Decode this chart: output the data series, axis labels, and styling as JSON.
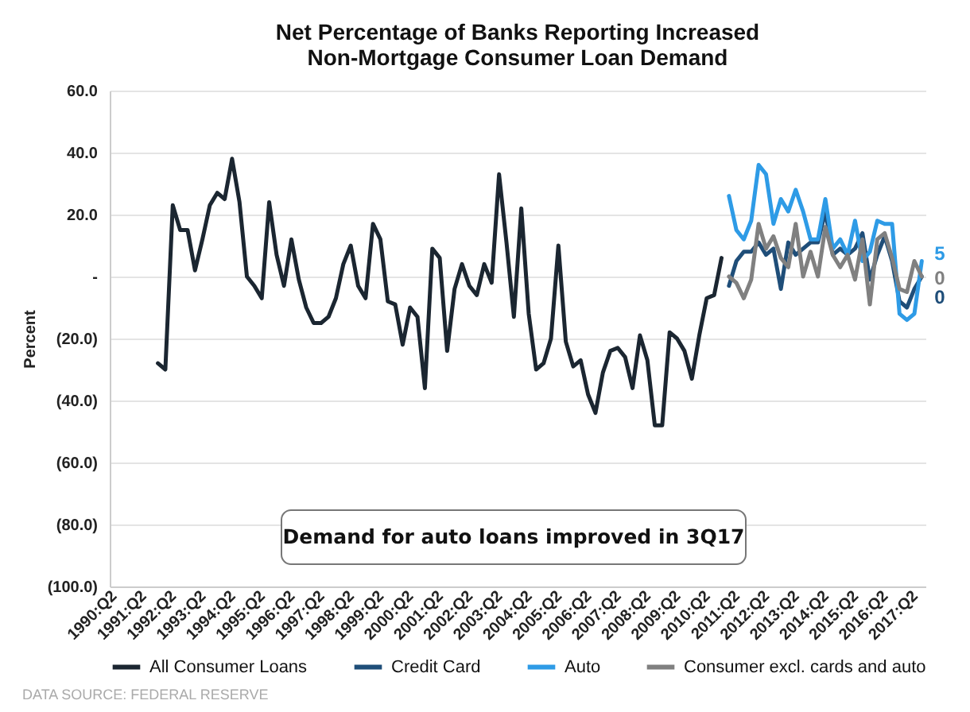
{
  "chart_data": {
    "type": "line",
    "title": "Net Percentage of Banks Reporting Increased\nNon-Mortgage Consumer Loan Demand",
    "ylabel": "Percent",
    "annotations": [
      "Demand for auto loans improved in 3Q17",
      "DATA SOURCE: FEDERAL RESERVE"
    ],
    "categories": [
      "1990:Q2",
      null,
      null,
      null,
      "1991:Q2",
      null,
      null,
      null,
      "1992:Q2",
      null,
      null,
      null,
      "1993:Q2",
      null,
      null,
      null,
      "1994:Q2",
      null,
      null,
      null,
      "1995:Q2",
      null,
      null,
      null,
      "1996:Q2",
      null,
      null,
      null,
      "1997:Q2",
      null,
      null,
      null,
      "1998:Q2",
      null,
      null,
      null,
      "1999:Q2",
      null,
      null,
      null,
      "2000:Q2",
      null,
      null,
      null,
      "2001:Q2",
      null,
      null,
      null,
      "2002:Q2",
      null,
      null,
      null,
      "2003:Q2",
      null,
      null,
      null,
      "2004:Q2",
      null,
      null,
      null,
      "2005:Q2",
      null,
      null,
      null,
      "2006:Q2",
      null,
      null,
      null,
      "2007:Q2",
      null,
      null,
      null,
      "2008:Q2",
      null,
      null,
      null,
      "2009:Q2",
      null,
      null,
      null,
      "2010:Q2",
      null,
      null,
      null,
      "2011:Q2",
      null,
      null,
      null,
      "2012:Q2",
      null,
      null,
      null,
      "2013:Q2",
      null,
      null,
      null,
      "2014:Q2",
      null,
      null,
      null,
      "2015:Q2",
      null,
      null,
      null,
      "2016:Q2",
      null,
      null,
      null,
      "2017:Q2",
      null
    ],
    "ylim": [
      -100,
      60
    ],
    "yticks": [
      {
        "value": 60,
        "label": "60.0"
      },
      {
        "value": 40,
        "label": "40.0"
      },
      {
        "value": 20,
        "label": "20.0"
      },
      {
        "value": 0,
        "label": "-"
      },
      {
        "value": -20,
        "label": "(20.0)"
      },
      {
        "value": -40,
        "label": "(40.0)"
      },
      {
        "value": -60,
        "label": "(60.0)"
      },
      {
        "value": -80,
        "label": "(80.0)"
      },
      {
        "value": -100,
        "label": "(100.0)"
      }
    ],
    "grid": "y",
    "legend": "bottom",
    "line_style": "solid",
    "series": [
      {
        "name": "All Consumer Loans",
        "color": "#1b2631",
        "values": [
          null,
          null,
          null,
          null,
          null,
          null,
          -28,
          -30,
          23,
          15,
          15,
          2,
          12,
          23,
          27,
          25,
          38,
          24,
          0,
          -3,
          -7,
          24,
          7,
          -3,
          12,
          -1,
          -10,
          -15,
          -15,
          -13,
          -7,
          4,
          10,
          -3,
          -7,
          17,
          12,
          -8,
          -9,
          -22,
          -10,
          -13,
          -36,
          9,
          6,
          -24,
          -4,
          4,
          -3,
          -6,
          4,
          -2,
          33,
          11,
          -13,
          22,
          -12,
          -30,
          -28,
          -20,
          10,
          -21,
          -29,
          -27,
          -38,
          -44,
          -31,
          -24,
          -23,
          -26,
          -36,
          -19,
          -27,
          -48,
          -48,
          -18,
          -20,
          -24,
          -33,
          -19,
          -7,
          -6,
          6,
          null,
          null,
          null,
          null,
          null,
          null,
          null,
          null,
          null,
          null,
          null,
          null,
          null,
          null,
          null,
          null,
          null,
          null,
          null,
          null,
          null,
          null,
          null,
          null,
          null,
          null,
          null
        ]
      },
      {
        "name": "Credit Card",
        "color": "#1f4e79",
        "values": [
          null,
          null,
          null,
          null,
          null,
          null,
          null,
          null,
          null,
          null,
          null,
          null,
          null,
          null,
          null,
          null,
          null,
          null,
          null,
          null,
          null,
          null,
          null,
          null,
          null,
          null,
          null,
          null,
          null,
          null,
          null,
          null,
          null,
          null,
          null,
          null,
          null,
          null,
          null,
          null,
          null,
          null,
          null,
          null,
          null,
          null,
          null,
          null,
          null,
          null,
          null,
          null,
          null,
          null,
          null,
          null,
          null,
          null,
          null,
          null,
          null,
          null,
          null,
          null,
          null,
          null,
          null,
          null,
          null,
          null,
          null,
          null,
          null,
          null,
          null,
          null,
          null,
          null,
          null,
          null,
          null,
          null,
          null,
          -3,
          5,
          8,
          8,
          11,
          7,
          9,
          -4,
          11,
          7,
          9,
          11,
          11,
          21,
          7,
          9,
          7,
          9,
          14,
          -1,
          7,
          13,
          5,
          -8,
          -10,
          -4,
          0
        ],
        "value_labels": [
          null,
          null,
          null,
          null,
          null,
          null,
          null,
          null,
          null,
          null,
          null,
          null,
          null,
          null,
          null,
          null,
          null,
          null,
          null,
          null,
          null,
          null,
          null,
          null,
          null,
          null,
          null,
          null,
          null,
          null,
          null,
          null,
          null,
          null,
          null,
          null,
          null,
          null,
          null,
          null,
          null,
          null,
          null,
          null,
          null,
          null,
          null,
          null,
          null,
          null,
          null,
          null,
          null,
          null,
          null,
          null,
          null,
          null,
          null,
          null,
          null,
          null,
          null,
          null,
          null,
          null,
          null,
          null,
          null,
          null,
          null,
          null,
          null,
          null,
          null,
          null,
          null,
          null,
          null,
          null,
          null,
          null,
          null,
          null,
          null,
          null,
          null,
          null,
          null,
          null,
          null,
          null,
          null,
          null,
          null,
          null,
          null,
          null,
          null,
          null,
          null,
          null,
          null,
          null,
          null,
          null,
          null,
          null,
          null,
          "0"
        ]
      },
      {
        "name": "Auto",
        "color": "#2e9be6",
        "values": [
          null,
          null,
          null,
          null,
          null,
          null,
          null,
          null,
          null,
          null,
          null,
          null,
          null,
          null,
          null,
          null,
          null,
          null,
          null,
          null,
          null,
          null,
          null,
          null,
          null,
          null,
          null,
          null,
          null,
          null,
          null,
          null,
          null,
          null,
          null,
          null,
          null,
          null,
          null,
          null,
          null,
          null,
          null,
          null,
          null,
          null,
          null,
          null,
          null,
          null,
          null,
          null,
          null,
          null,
          null,
          null,
          null,
          null,
          null,
          null,
          null,
          null,
          null,
          null,
          null,
          null,
          null,
          null,
          null,
          null,
          null,
          null,
          null,
          null,
          null,
          null,
          null,
          null,
          null,
          null,
          null,
          null,
          null,
          26,
          15,
          12,
          18,
          36,
          33,
          17,
          25,
          21,
          28,
          21,
          12,
          12,
          25,
          9,
          12,
          7,
          18,
          5,
          8,
          18,
          17,
          17,
          -12,
          -14,
          -12,
          5
        ],
        "value_labels": [
          null,
          null,
          null,
          null,
          null,
          null,
          null,
          null,
          null,
          null,
          null,
          null,
          null,
          null,
          null,
          null,
          null,
          null,
          null,
          null,
          null,
          null,
          null,
          null,
          null,
          null,
          null,
          null,
          null,
          null,
          null,
          null,
          null,
          null,
          null,
          null,
          null,
          null,
          null,
          null,
          null,
          null,
          null,
          null,
          null,
          null,
          null,
          null,
          null,
          null,
          null,
          null,
          null,
          null,
          null,
          null,
          null,
          null,
          null,
          null,
          null,
          null,
          null,
          null,
          null,
          null,
          null,
          null,
          null,
          null,
          null,
          null,
          null,
          null,
          null,
          null,
          null,
          null,
          null,
          null,
          null,
          null,
          null,
          null,
          null,
          null,
          null,
          null,
          null,
          null,
          null,
          null,
          null,
          null,
          null,
          null,
          null,
          null,
          null,
          null,
          null,
          null,
          null,
          null,
          null,
          null,
          null,
          null,
          null,
          "5"
        ]
      },
      {
        "name": "Consumer excl. cards and auto",
        "color": "#808080",
        "values": [
          null,
          null,
          null,
          null,
          null,
          null,
          null,
          null,
          null,
          null,
          null,
          null,
          null,
          null,
          null,
          null,
          null,
          null,
          null,
          null,
          null,
          null,
          null,
          null,
          null,
          null,
          null,
          null,
          null,
          null,
          null,
          null,
          null,
          null,
          null,
          null,
          null,
          null,
          null,
          null,
          null,
          null,
          null,
          null,
          null,
          null,
          null,
          null,
          null,
          null,
          null,
          null,
          null,
          null,
          null,
          null,
          null,
          null,
          null,
          null,
          null,
          null,
          null,
          null,
          null,
          null,
          null,
          null,
          null,
          null,
          null,
          null,
          null,
          null,
          null,
          null,
          null,
          null,
          null,
          null,
          null,
          null,
          null,
          0,
          -2,
          -7,
          -1,
          17,
          9,
          13,
          6,
          3,
          17,
          0,
          8,
          0,
          16,
          7,
          3,
          7,
          -1,
          12,
          -9,
          12,
          14,
          6,
          -4,
          -5,
          5,
          0
        ],
        "value_labels": [
          null,
          null,
          null,
          null,
          null,
          null,
          null,
          null,
          null,
          null,
          null,
          null,
          null,
          null,
          null,
          null,
          null,
          null,
          null,
          null,
          null,
          null,
          null,
          null,
          null,
          null,
          null,
          null,
          null,
          null,
          null,
          null,
          null,
          null,
          null,
          null,
          null,
          null,
          null,
          null,
          null,
          null,
          null,
          null,
          null,
          null,
          null,
          null,
          null,
          null,
          null,
          null,
          null,
          null,
          null,
          null,
          null,
          null,
          null,
          null,
          null,
          null,
          null,
          null,
          null,
          null,
          null,
          null,
          null,
          null,
          null,
          null,
          null,
          null,
          null,
          null,
          null,
          null,
          null,
          null,
          null,
          null,
          null,
          null,
          null,
          null,
          null,
          null,
          null,
          null,
          null,
          null,
          null,
          null,
          null,
          null,
          null,
          null,
          null,
          null,
          null,
          null,
          null,
          null,
          null,
          null,
          null,
          null,
          null,
          "0"
        ]
      }
    ]
  }
}
